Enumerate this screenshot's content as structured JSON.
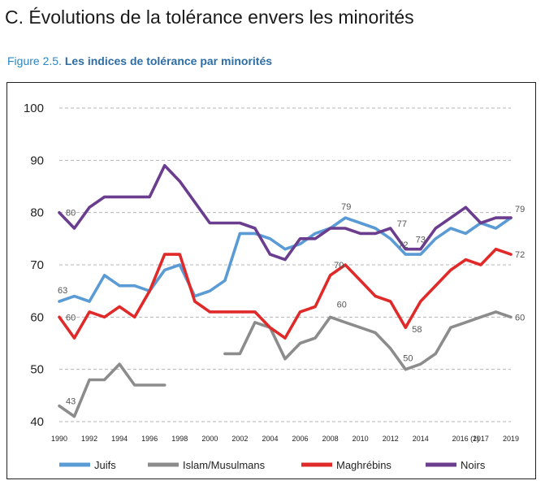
{
  "header": {
    "section_title": "C. Évolutions de la tolérance envers les minorités",
    "figure_number": "Figure 2.5.",
    "figure_title": "Les indices de tolérance par minorités"
  },
  "chart_data": {
    "type": "line",
    "title": "Les indices de tolérance par minorités",
    "xlabel": "",
    "ylabel": "",
    "ylim": [
      40,
      100
    ],
    "y_ticks": [
      40,
      50,
      60,
      70,
      80,
      90,
      100
    ],
    "x_tick_labels": [
      "1990",
      "1992",
      "1994",
      "1996",
      "1998",
      "2000",
      "2002",
      "2004",
      "2006",
      "2008",
      "2010",
      "2012",
      "2014",
      "2016 (1)",
      "2017",
      "2019"
    ],
    "categories": [
      "1990",
      "1991",
      "1992",
      "1993",
      "1994",
      "1995",
      "1996",
      "1997",
      "1998",
      "1999",
      "2000",
      "2001",
      "2002",
      "2003",
      "2004",
      "2005",
      "2006",
      "2007",
      "2008",
      "2009",
      "2010",
      "2011",
      "2012",
      "2013",
      "2014",
      "2015",
      "2016",
      "2016 (1)",
      "2017",
      "2018",
      "2019"
    ],
    "grid": "horizontal dashed",
    "legend_position": "bottom",
    "series": [
      {
        "name": "Juifs",
        "color": "#5b9bd5",
        "values": [
          63,
          64,
          63,
          68,
          66,
          66,
          65,
          69,
          70,
          64,
          65,
          67,
          76,
          76,
          75,
          73,
          74,
          76,
          77,
          79,
          78,
          77,
          75,
          72,
          72,
          75,
          77,
          76,
          78,
          77,
          79
        ]
      },
      {
        "name": "Islam/Musulmans",
        "color": "#8c8c8c",
        "values": [
          43,
          41,
          48,
          48,
          51,
          47,
          47,
          47,
          null,
          null,
          null,
          53,
          53,
          59,
          58,
          52,
          55,
          56,
          60,
          59,
          58,
          57,
          54,
          50,
          51,
          53,
          58,
          59,
          60,
          61,
          60
        ]
      },
      {
        "name": "Maghrébins",
        "color": "#e02a2a",
        "values": [
          60,
          56,
          61,
          60,
          62,
          60,
          65,
          72,
          72,
          63,
          61,
          61,
          61,
          61,
          58,
          56,
          61,
          62,
          68,
          70,
          67,
          64,
          63,
          58,
          63,
          66,
          69,
          71,
          70,
          73,
          72
        ]
      },
      {
        "name": "Noirs",
        "color": "#6a3d8f",
        "values": [
          80,
          77,
          81,
          83,
          83,
          83,
          83,
          89,
          86,
          82,
          78,
          78,
          78,
          77,
          72,
          71,
          75,
          75,
          77,
          77,
          76,
          76,
          77,
          73,
          73,
          77,
          79,
          81,
          78,
          79,
          79
        ]
      }
    ],
    "annotations": [
      {
        "series": 0,
        "index": 0,
        "text": "63"
      },
      {
        "series": 0,
        "index": 19,
        "text": "79"
      },
      {
        "series": 0,
        "index": 23,
        "text": "72"
      },
      {
        "series": 0,
        "index": 30,
        "text": "79"
      },
      {
        "series": 1,
        "index": 0,
        "text": "43"
      },
      {
        "series": 1,
        "index": 18,
        "text": "60"
      },
      {
        "series": 1,
        "index": 23,
        "text": "50"
      },
      {
        "series": 1,
        "index": 30,
        "text": "60"
      },
      {
        "series": 2,
        "index": 0,
        "text": "60"
      },
      {
        "series": 2,
        "index": 19,
        "text": "70"
      },
      {
        "series": 2,
        "index": 23,
        "text": "58"
      },
      {
        "series": 2,
        "index": 30,
        "text": "72"
      },
      {
        "series": 3,
        "index": 0,
        "text": "80"
      },
      {
        "series": 3,
        "index": 22,
        "text": "77"
      },
      {
        "series": 3,
        "index": 24,
        "text": "73"
      }
    ]
  }
}
